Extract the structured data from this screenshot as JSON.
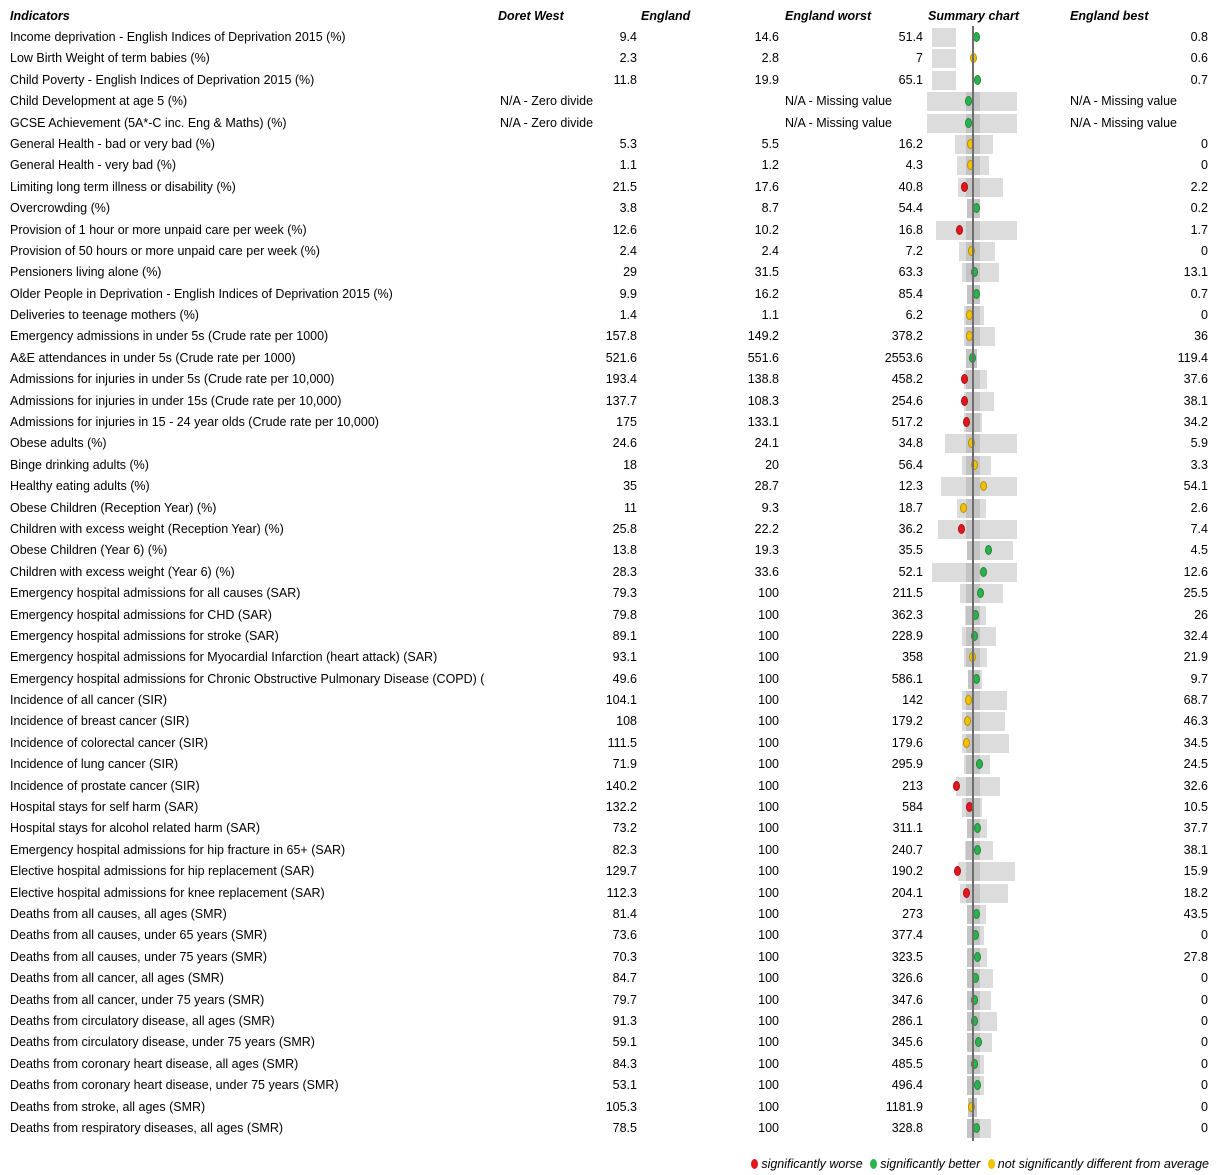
{
  "headers": {
    "indicators": "Indicators",
    "area": "Doret West",
    "england": "England",
    "worst": "England worst",
    "summary": "Summary chart",
    "best": "England best"
  },
  "colors": {
    "worse": "#e3161b",
    "better": "#2bb24c",
    "similar": "#f2c200"
  },
  "rows": [
    {
      "name": "Income deprivation - English Indices of Deprivation 2015 (%)",
      "area": "9.4",
      "england": "14.6",
      "worst": "51.4",
      "best": "0.8",
      "status": "better",
      "pos": 0.55,
      "bar": [
        0.08,
        0.33
      ]
    },
    {
      "name": "Low Birth Weight of term babies (%)",
      "area": "2.3",
      "england": "2.8",
      "worst": "7",
      "best": "0.6",
      "status": "similar",
      "pos": 0.52,
      "bar": [
        0.08,
        0.33
      ]
    },
    {
      "name": "Child Poverty - English Indices of Deprivation 2015 (%)",
      "area": "11.8",
      "england": "19.9",
      "worst": "65.1",
      "best": "0.7",
      "status": "better",
      "pos": 0.56,
      "bar": [
        0.08,
        0.33
      ]
    },
    {
      "name": "Child Development at age 5 (%)",
      "area": "N/A - Zero divide",
      "england": "",
      "worst": "N/A - Missing value",
      "best": "N/A - Missing value",
      "status": "better",
      "pos": 0.46,
      "bar": [
        0.03,
        0.97
      ]
    },
    {
      "name": "GCSE Achievement (5A*-C inc. Eng & Maths) (%)",
      "area": "N/A - Zero divide",
      "england": "",
      "worst": "N/A - Missing value",
      "best": "N/A - Missing value",
      "status": "better",
      "pos": 0.46,
      "bar": [
        0.03,
        0.97
      ]
    },
    {
      "name": "General Health - bad or very bad (%)",
      "area": "5.3",
      "england": "5.5",
      "worst": "16.2",
      "best": "0",
      "status": "similar",
      "pos": 0.48,
      "bar": [
        0.32,
        0.72
      ]
    },
    {
      "name": "General Health - very bad (%)",
      "area": "1.1",
      "england": "1.2",
      "worst": "4.3",
      "best": "0",
      "status": "similar",
      "pos": 0.48,
      "bar": [
        0.34,
        0.68
      ]
    },
    {
      "name": "Limiting long term illness or disability (%)",
      "area": "21.5",
      "england": "17.6",
      "worst": "40.8",
      "best": "2.2",
      "status": "worse",
      "pos": 0.42,
      "bar": [
        0.35,
        0.82
      ]
    },
    {
      "name": "Overcrowding (%)",
      "area": "3.8",
      "england": "8.7",
      "worst": "54.4",
      "best": "0.2",
      "status": "better",
      "pos": 0.55,
      "bar": [
        0.45,
        0.58
      ]
    },
    {
      "name": "Provision of 1 hour or more unpaid care per week (%)",
      "area": "12.6",
      "england": "10.2",
      "worst": "16.8",
      "best": "1.7",
      "status": "worse",
      "pos": 0.37,
      "bar": [
        0.12,
        0.97
      ]
    },
    {
      "name": "Provision of 50 hours or more unpaid care per week (%)",
      "area": "2.4",
      "england": "2.4",
      "worst": "7.2",
      "best": "0",
      "status": "similar",
      "pos": 0.49,
      "bar": [
        0.36,
        0.74
      ]
    },
    {
      "name": "Pensioners living alone (%)",
      "area": "29",
      "england": "31.5",
      "worst": "63.3",
      "best": "13.1",
      "status": "better",
      "pos": 0.53,
      "bar": [
        0.4,
        0.78
      ]
    },
    {
      "name": "Older People in Deprivation - English Indices of Deprivation 2015 (%)",
      "area": "9.9",
      "england": "16.2",
      "worst": "85.4",
      "best": "0.7",
      "status": "better",
      "pos": 0.55,
      "bar": [
        0.45,
        0.58
      ]
    },
    {
      "name": "Deliveries to teenage mothers (%)",
      "area": "1.4",
      "england": "1.1",
      "worst": "6.2",
      "best": "0",
      "status": "similar",
      "pos": 0.47,
      "bar": [
        0.42,
        0.62
      ]
    },
    {
      "name": "Emergency admissions in under 5s (Crude rate per 1000)",
      "area": "157.8",
      "england": "149.2",
      "worst": "378.2",
      "best": "36",
      "status": "similar",
      "pos": 0.47,
      "bar": [
        0.42,
        0.74
      ]
    },
    {
      "name": "A&E attendances in under 5s (Crude rate per 1000)",
      "area": "521.6",
      "england": "551.6",
      "worst": "2553.6",
      "best": "119.4",
      "status": "better",
      "pos": 0.51,
      "bar": [
        0.44,
        0.55
      ]
    },
    {
      "name": "Admissions for injuries in under 5s (Crude rate per 10,000)",
      "area": "193.4",
      "england": "138.8",
      "worst": "458.2",
      "best": "37.6",
      "status": "worse",
      "pos": 0.42,
      "bar": [
        0.42,
        0.66
      ]
    },
    {
      "name": "Admissions for injuries in under 15s (Crude rate per 10,000)",
      "area": "137.7",
      "england": "108.3",
      "worst": "254.6",
      "best": "38.1",
      "status": "worse",
      "pos": 0.42,
      "bar": [
        0.42,
        0.73
      ]
    },
    {
      "name": "Admissions for injuries in 15 - 24 year olds (Crude rate per 10,000)",
      "area": "175",
      "england": "133.1",
      "worst": "517.2",
      "best": "34.2",
      "status": "worse",
      "pos": 0.44,
      "bar": [
        0.42,
        0.6
      ]
    },
    {
      "name": "Obese adults (%)",
      "area": "24.6",
      "england": "24.1",
      "worst": "34.8",
      "best": "5.9",
      "status": "similar",
      "pos": 0.49,
      "bar": [
        0.22,
        0.97
      ]
    },
    {
      "name": "Binge drinking adults (%)",
      "area": "18",
      "england": "20",
      "worst": "56.4",
      "best": "3.3",
      "status": "similar",
      "pos": 0.53,
      "bar": [
        0.4,
        0.7
      ]
    },
    {
      "name": "Healthy eating adults (%)",
      "area": "35",
      "england": "28.7",
      "worst": "12.3",
      "best": "54.1",
      "status": "similar",
      "pos": 0.62,
      "bar": [
        0.18,
        0.97
      ]
    },
    {
      "name": "Obese Children (Reception Year) (%)",
      "area": "11",
      "england": "9.3",
      "worst": "18.7",
      "best": "2.6",
      "status": "similar",
      "pos": 0.41,
      "bar": [
        0.34,
        0.65
      ]
    },
    {
      "name": "Children with excess weight (Reception Year) (%)",
      "area": "25.8",
      "england": "22.2",
      "worst": "36.2",
      "best": "7.4",
      "status": "worse",
      "pos": 0.39,
      "bar": [
        0.15,
        0.97
      ]
    },
    {
      "name": "Obese Children (Year 6) (%)",
      "area": "13.8",
      "england": "19.3",
      "worst": "35.5",
      "best": "4.5",
      "status": "better",
      "pos": 0.67,
      "bar": [
        0.45,
        0.93
      ]
    },
    {
      "name": "Children with excess weight (Year 6) (%)",
      "area": "28.3",
      "england": "33.6",
      "worst": "52.1",
      "best": "12.6",
      "status": "better",
      "pos": 0.62,
      "bar": [
        0.08,
        0.97
      ]
    },
    {
      "name": "Emergency hospital admissions for all causes (SAR)",
      "area": "79.3",
      "england": "100",
      "worst": "211.5",
      "best": "25.5",
      "status": "better",
      "pos": 0.59,
      "bar": [
        0.38,
        0.82
      ]
    },
    {
      "name": "Emergency hospital admissions for CHD (SAR)",
      "area": "79.8",
      "england": "100",
      "worst": "362.3",
      "best": "26",
      "status": "better",
      "pos": 0.54,
      "bar": [
        0.43,
        0.65
      ]
    },
    {
      "name": "Emergency hospital admissions for stroke (SAR)",
      "area": "89.1",
      "england": "100",
      "worst": "228.9",
      "best": "32.4",
      "status": "better",
      "pos": 0.53,
      "bar": [
        0.4,
        0.75
      ]
    },
    {
      "name": "Emergency hospital admissions for Myocardial Infarction (heart attack) (SAR)",
      "area": "93.1",
      "england": "100",
      "worst": "358",
      "best": "21.9",
      "status": "similar",
      "pos": 0.51,
      "bar": [
        0.42,
        0.66
      ]
    },
    {
      "name": "Emergency hospital admissions for Chronic Obstructive Pulmonary Disease (COPD) (",
      "area": "49.6",
      "england": "100",
      "worst": "586.1",
      "best": "9.7",
      "status": "better",
      "pos": 0.55,
      "bar": [
        0.46,
        0.6
      ]
    },
    {
      "name": "Incidence of all cancer (SIR)",
      "area": "104.1",
      "england": "100",
      "worst": "142",
      "best": "68.7",
      "status": "similar",
      "pos": 0.46,
      "bar": [
        0.4,
        0.86
      ]
    },
    {
      "name": "Incidence of breast cancer (SIR)",
      "area": "108",
      "england": "100",
      "worst": "179.2",
      "best": "46.3",
      "status": "similar",
      "pos": 0.45,
      "bar": [
        0.4,
        0.84
      ]
    },
    {
      "name": "Incidence of colorectal cancer (SIR)",
      "area": "111.5",
      "england": "100",
      "worst": "179.6",
      "best": "34.5",
      "status": "similar",
      "pos": 0.44,
      "bar": [
        0.4,
        0.89
      ]
    },
    {
      "name": "Incidence of lung cancer (SIR)",
      "area": "71.9",
      "england": "100",
      "worst": "295.9",
      "best": "24.5",
      "status": "better",
      "pos": 0.58,
      "bar": [
        0.42,
        0.69
      ]
    },
    {
      "name": "Incidence of prostate cancer (SIR)",
      "area": "140.2",
      "england": "100",
      "worst": "213",
      "best": "32.6",
      "status": "worse",
      "pos": 0.34,
      "bar": [
        0.33,
        0.79
      ]
    },
    {
      "name": "Hospital stays for self harm (SAR)",
      "area": "132.2",
      "england": "100",
      "worst": "584",
      "best": "10.5",
      "status": "worse",
      "pos": 0.47,
      "bar": [
        0.4,
        0.6
      ]
    },
    {
      "name": "Hospital stays for alcohol related harm (SAR)",
      "area": "73.2",
      "england": "100",
      "worst": "311.1",
      "best": "37.7",
      "status": "better",
      "pos": 0.56,
      "bar": [
        0.45,
        0.66
      ]
    },
    {
      "name": "Emergency hospital admissions for hip fracture in 65+ (SAR)",
      "area": "82.3",
      "england": "100",
      "worst": "240.7",
      "best": "38.1",
      "status": "better",
      "pos": 0.56,
      "bar": [
        0.43,
        0.72
      ]
    },
    {
      "name": "Elective hospital admissions for hip replacement (SAR)",
      "area": "129.7",
      "england": "100",
      "worst": "190.2",
      "best": "15.9",
      "status": "worse",
      "pos": 0.35,
      "bar": [
        0.35,
        0.95
      ]
    },
    {
      "name": "Elective hospital admissions for knee replacement (SAR)",
      "area": "112.3",
      "england": "100",
      "worst": "204.1",
      "best": "18.2",
      "status": "worse",
      "pos": 0.44,
      "bar": [
        0.38,
        0.88
      ]
    },
    {
      "name": "Deaths from all causes, all ages (SMR)",
      "area": "81.4",
      "england": "100",
      "worst": "273",
      "best": "43.5",
      "status": "better",
      "pos": 0.55,
      "bar": [
        0.45,
        0.65
      ]
    },
    {
      "name": "Deaths from all causes, under 65 years (SMR)",
      "area": "73.6",
      "england": "100",
      "worst": "377.4",
      "best": "0",
      "status": "better",
      "pos": 0.54,
      "bar": [
        0.45,
        0.63
      ]
    },
    {
      "name": "Deaths from all causes, under 75 years (SMR)",
      "area": "70.3",
      "england": "100",
      "worst": "323.5",
      "best": "27.8",
      "status": "better",
      "pos": 0.56,
      "bar": [
        0.45,
        0.66
      ]
    },
    {
      "name": "Deaths from all cancer, all ages (SMR)",
      "area": "84.7",
      "england": "100",
      "worst": "326.6",
      "best": "0",
      "status": "better",
      "pos": 0.54,
      "bar": [
        0.45,
        0.72
      ]
    },
    {
      "name": "Deaths from all cancer, under 75 years (SMR)",
      "area": "79.7",
      "england": "100",
      "worst": "347.6",
      "best": "0",
      "status": "better",
      "pos": 0.53,
      "bar": [
        0.45,
        0.7
      ]
    },
    {
      "name": "Deaths from circulatory disease, all ages (SMR)",
      "area": "91.3",
      "england": "100",
      "worst": "286.1",
      "best": "0",
      "status": "better",
      "pos": 0.53,
      "bar": [
        0.45,
        0.76
      ]
    },
    {
      "name": "Deaths from circulatory disease, under 75 years (SMR)",
      "area": "59.1",
      "england": "100",
      "worst": "345.6",
      "best": "0",
      "status": "better",
      "pos": 0.57,
      "bar": [
        0.45,
        0.71
      ]
    },
    {
      "name": "Deaths from coronary heart disease, all ages (SMR)",
      "area": "84.3",
      "england": "100",
      "worst": "485.5",
      "best": "0",
      "status": "better",
      "pos": 0.53,
      "bar": [
        0.45,
        0.63
      ]
    },
    {
      "name": "Deaths from coronary heart disease, under 75 years (SMR)",
      "area": "53.1",
      "england": "100",
      "worst": "496.4",
      "best": "0",
      "status": "better",
      "pos": 0.56,
      "bar": [
        0.45,
        0.63
      ]
    },
    {
      "name": "Deaths from stroke, all ages (SMR)",
      "area": "105.3",
      "england": "100",
      "worst": "1181.9",
      "best": "0",
      "status": "similar",
      "pos": 0.49,
      "bar": [
        0.46,
        0.55
      ]
    },
    {
      "name": "Deaths from respiratory diseases, all ages (SMR)",
      "area": "78.5",
      "england": "100",
      "worst": "328.8",
      "best": "0",
      "status": "better",
      "pos": 0.55,
      "bar": [
        0.45,
        0.7
      ]
    }
  ],
  "legend": {
    "worse": "significantly worse",
    "better": "significantly better",
    "similar": "not significantly different from average"
  }
}
